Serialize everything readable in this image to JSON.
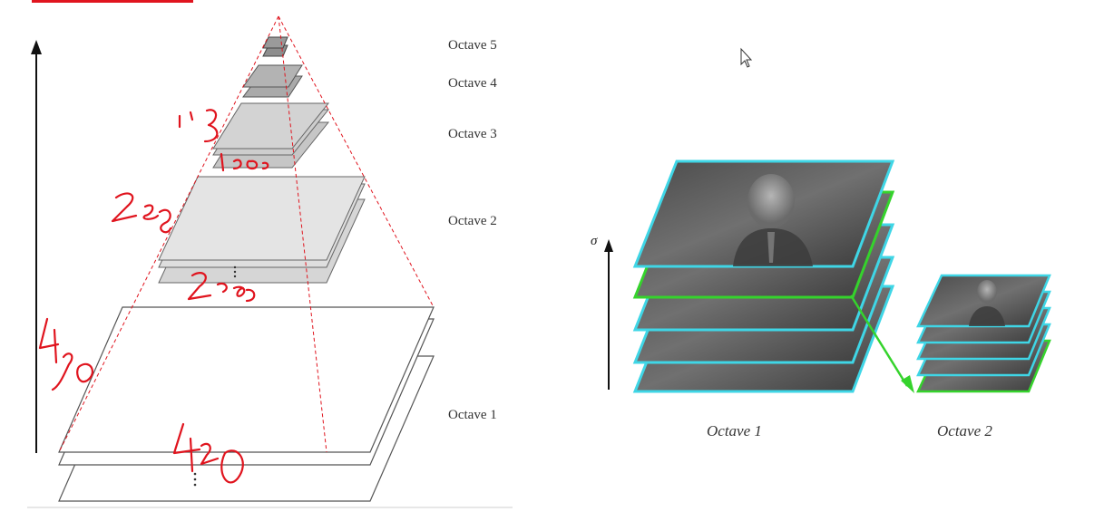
{
  "pyramid": {
    "octave_labels": [
      "Octave 5",
      "Octave 4",
      "Octave 3",
      "Octave 2",
      "Octave 1"
    ]
  },
  "annotations": {
    "octave3_top": "1e2",
    "octave3_bottom": "1e0",
    "octave2_top": "2e2",
    "octave2_bottom": "2e0",
    "octave1_side": "4e0",
    "octave1_bottom": "4e0"
  },
  "gaussian_stack": {
    "axis_label": "σ",
    "labels": [
      "Octave 1",
      "Octave 2"
    ]
  },
  "colors": {
    "frame": "#3fd6e6",
    "highlight": "#35d32c",
    "ink": "#e0141e"
  }
}
